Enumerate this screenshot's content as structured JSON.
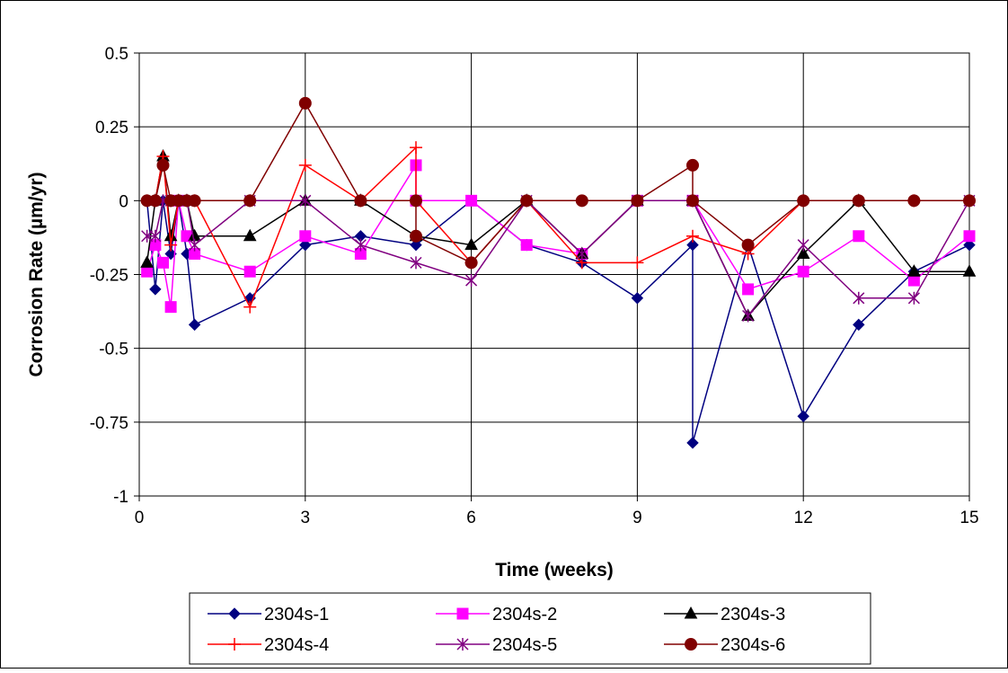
{
  "chart_data": {
    "type": "line",
    "xlabel": "Time (weeks)",
    "ylabel": "Corrosion Rate (µm/yr)",
    "xlim": [
      0,
      15
    ],
    "ylim": [
      -1,
      0.5
    ],
    "x_ticks": [
      0,
      3,
      6,
      9,
      12,
      15
    ],
    "x_tick_labels": [
      "0",
      "3",
      "6",
      "9",
      "12",
      "15"
    ],
    "y_ticks": [
      0.5,
      0.25,
      0,
      -0.25,
      -0.5,
      -0.75,
      -1
    ],
    "y_tick_labels": [
      "0.5",
      "0.25",
      "0",
      "-0.25",
      "-0.5",
      "-0.75",
      "-1"
    ],
    "grid": true,
    "legend_position": "bottom",
    "series": [
      {
        "name": "2304s-1",
        "color": "#000080",
        "marker": "diamond",
        "points": [
          [
            0.14,
            0
          ],
          [
            0.29,
            -0.3
          ],
          [
            0.43,
            0
          ],
          [
            0.57,
            -0.18
          ],
          [
            0.71,
            0
          ],
          [
            0.86,
            -0.18
          ],
          [
            1,
            -0.42
          ],
          [
            2,
            -0.33
          ],
          [
            3,
            -0.15
          ],
          [
            4,
            -0.12
          ],
          [
            5,
            -0.15
          ],
          [
            6,
            0
          ],
          [
            7,
            -0.15
          ],
          [
            8,
            -0.21
          ],
          [
            9,
            -0.33
          ],
          [
            10,
            -0.15
          ],
          [
            10,
            -0.82
          ],
          [
            11,
            -0.15
          ],
          [
            12,
            -0.73
          ],
          [
            13,
            -0.42
          ],
          [
            14,
            -0.24
          ],
          [
            15,
            -0.15
          ]
        ]
      },
      {
        "name": "2304s-2",
        "color": "#ff00ff",
        "marker": "square",
        "points": [
          [
            0.14,
            -0.24
          ],
          [
            0.29,
            -0.15
          ],
          [
            0.43,
            -0.21
          ],
          [
            0.57,
            -0.36
          ],
          [
            0.71,
            0
          ],
          [
            0.86,
            -0.12
          ],
          [
            1,
            -0.18
          ],
          [
            2,
            -0.24
          ],
          [
            3,
            -0.12
          ],
          [
            4,
            -0.18
          ],
          [
            5,
            0.12
          ],
          [
            5,
            0
          ],
          [
            6,
            0
          ],
          [
            7,
            -0.15
          ],
          [
            8,
            -0.18
          ],
          [
            9,
            0
          ],
          [
            10,
            0
          ],
          [
            11,
            -0.3
          ],
          [
            12,
            -0.24
          ],
          [
            13,
            -0.12
          ],
          [
            14,
            -0.27
          ],
          [
            15,
            -0.12
          ]
        ]
      },
      {
        "name": "2304s-3",
        "color": "#000000",
        "marker": "triangle",
        "points": [
          [
            0.14,
            -0.21
          ],
          [
            0.29,
            0
          ],
          [
            0.43,
            0.15
          ],
          [
            0.57,
            -0.12
          ],
          [
            0.71,
            0
          ],
          [
            0.86,
            0
          ],
          [
            1,
            -0.12
          ],
          [
            2,
            -0.12
          ],
          [
            3,
            0
          ],
          [
            4,
            0
          ],
          [
            5,
            -0.12
          ],
          [
            6,
            -0.15
          ],
          [
            7,
            0
          ],
          [
            8,
            -0.18
          ],
          [
            9,
            0
          ],
          [
            10,
            0
          ],
          [
            11,
            -0.39
          ],
          [
            12,
            -0.18
          ],
          [
            13,
            0
          ],
          [
            14,
            -0.24
          ],
          [
            15,
            -0.24
          ]
        ]
      },
      {
        "name": "2304s-4",
        "color": "#ff0000",
        "marker": "plus",
        "points": [
          [
            0.14,
            0
          ],
          [
            0.29,
            0
          ],
          [
            0.43,
            0.15
          ],
          [
            0.57,
            -0.15
          ],
          [
            0.71,
            0
          ],
          [
            0.86,
            0
          ],
          [
            1,
            0
          ],
          [
            2,
            -0.36
          ],
          [
            3,
            0.12
          ],
          [
            4,
            0
          ],
          [
            5,
            0.18
          ],
          [
            5,
            0
          ],
          [
            6,
            -0.21
          ],
          [
            7,
            0
          ],
          [
            8,
            -0.21
          ],
          [
            9,
            -0.21
          ],
          [
            10,
            -0.12
          ],
          [
            11,
            -0.18
          ],
          [
            12,
            0
          ],
          [
            13,
            0
          ],
          [
            14,
            0
          ],
          [
            15,
            0
          ]
        ]
      },
      {
        "name": "2304s-5",
        "color": "#800080",
        "marker": "asterisk",
        "points": [
          [
            0.14,
            -0.12
          ],
          [
            0.29,
            -0.12
          ],
          [
            0.43,
            0
          ],
          [
            0.57,
            0
          ],
          [
            0.71,
            0
          ],
          [
            0.86,
            0
          ],
          [
            1,
            -0.15
          ],
          [
            2,
            0
          ],
          [
            3,
            0
          ],
          [
            4,
            -0.15
          ],
          [
            5,
            -0.21
          ],
          [
            6,
            -0.27
          ],
          [
            7,
            0
          ],
          [
            8,
            -0.18
          ],
          [
            9,
            0
          ],
          [
            10,
            0
          ],
          [
            11,
            -0.39
          ],
          [
            12,
            -0.15
          ],
          [
            13,
            -0.33
          ],
          [
            14,
            -0.33
          ],
          [
            15,
            0
          ]
        ]
      },
      {
        "name": "2304s-6",
        "color": "#800000",
        "marker": "circle",
        "points": [
          [
            0.14,
            0
          ],
          [
            0.29,
            0
          ],
          [
            0.43,
            0.12
          ],
          [
            0.57,
            0
          ],
          [
            0.71,
            0
          ],
          [
            0.86,
            0
          ],
          [
            1,
            0
          ],
          [
            2,
            0
          ],
          [
            3,
            0.33
          ],
          [
            4,
            0
          ],
          [
            5,
            0
          ],
          [
            5,
            -0.12
          ],
          [
            6,
            -0.21
          ],
          [
            7,
            0
          ],
          [
            8,
            0
          ],
          [
            9,
            0
          ],
          [
            10,
            0.12
          ],
          [
            10,
            0
          ],
          [
            11,
            -0.15
          ],
          [
            12,
            0
          ],
          [
            13,
            0
          ],
          [
            14,
            0
          ],
          [
            15,
            0
          ]
        ]
      }
    ]
  }
}
